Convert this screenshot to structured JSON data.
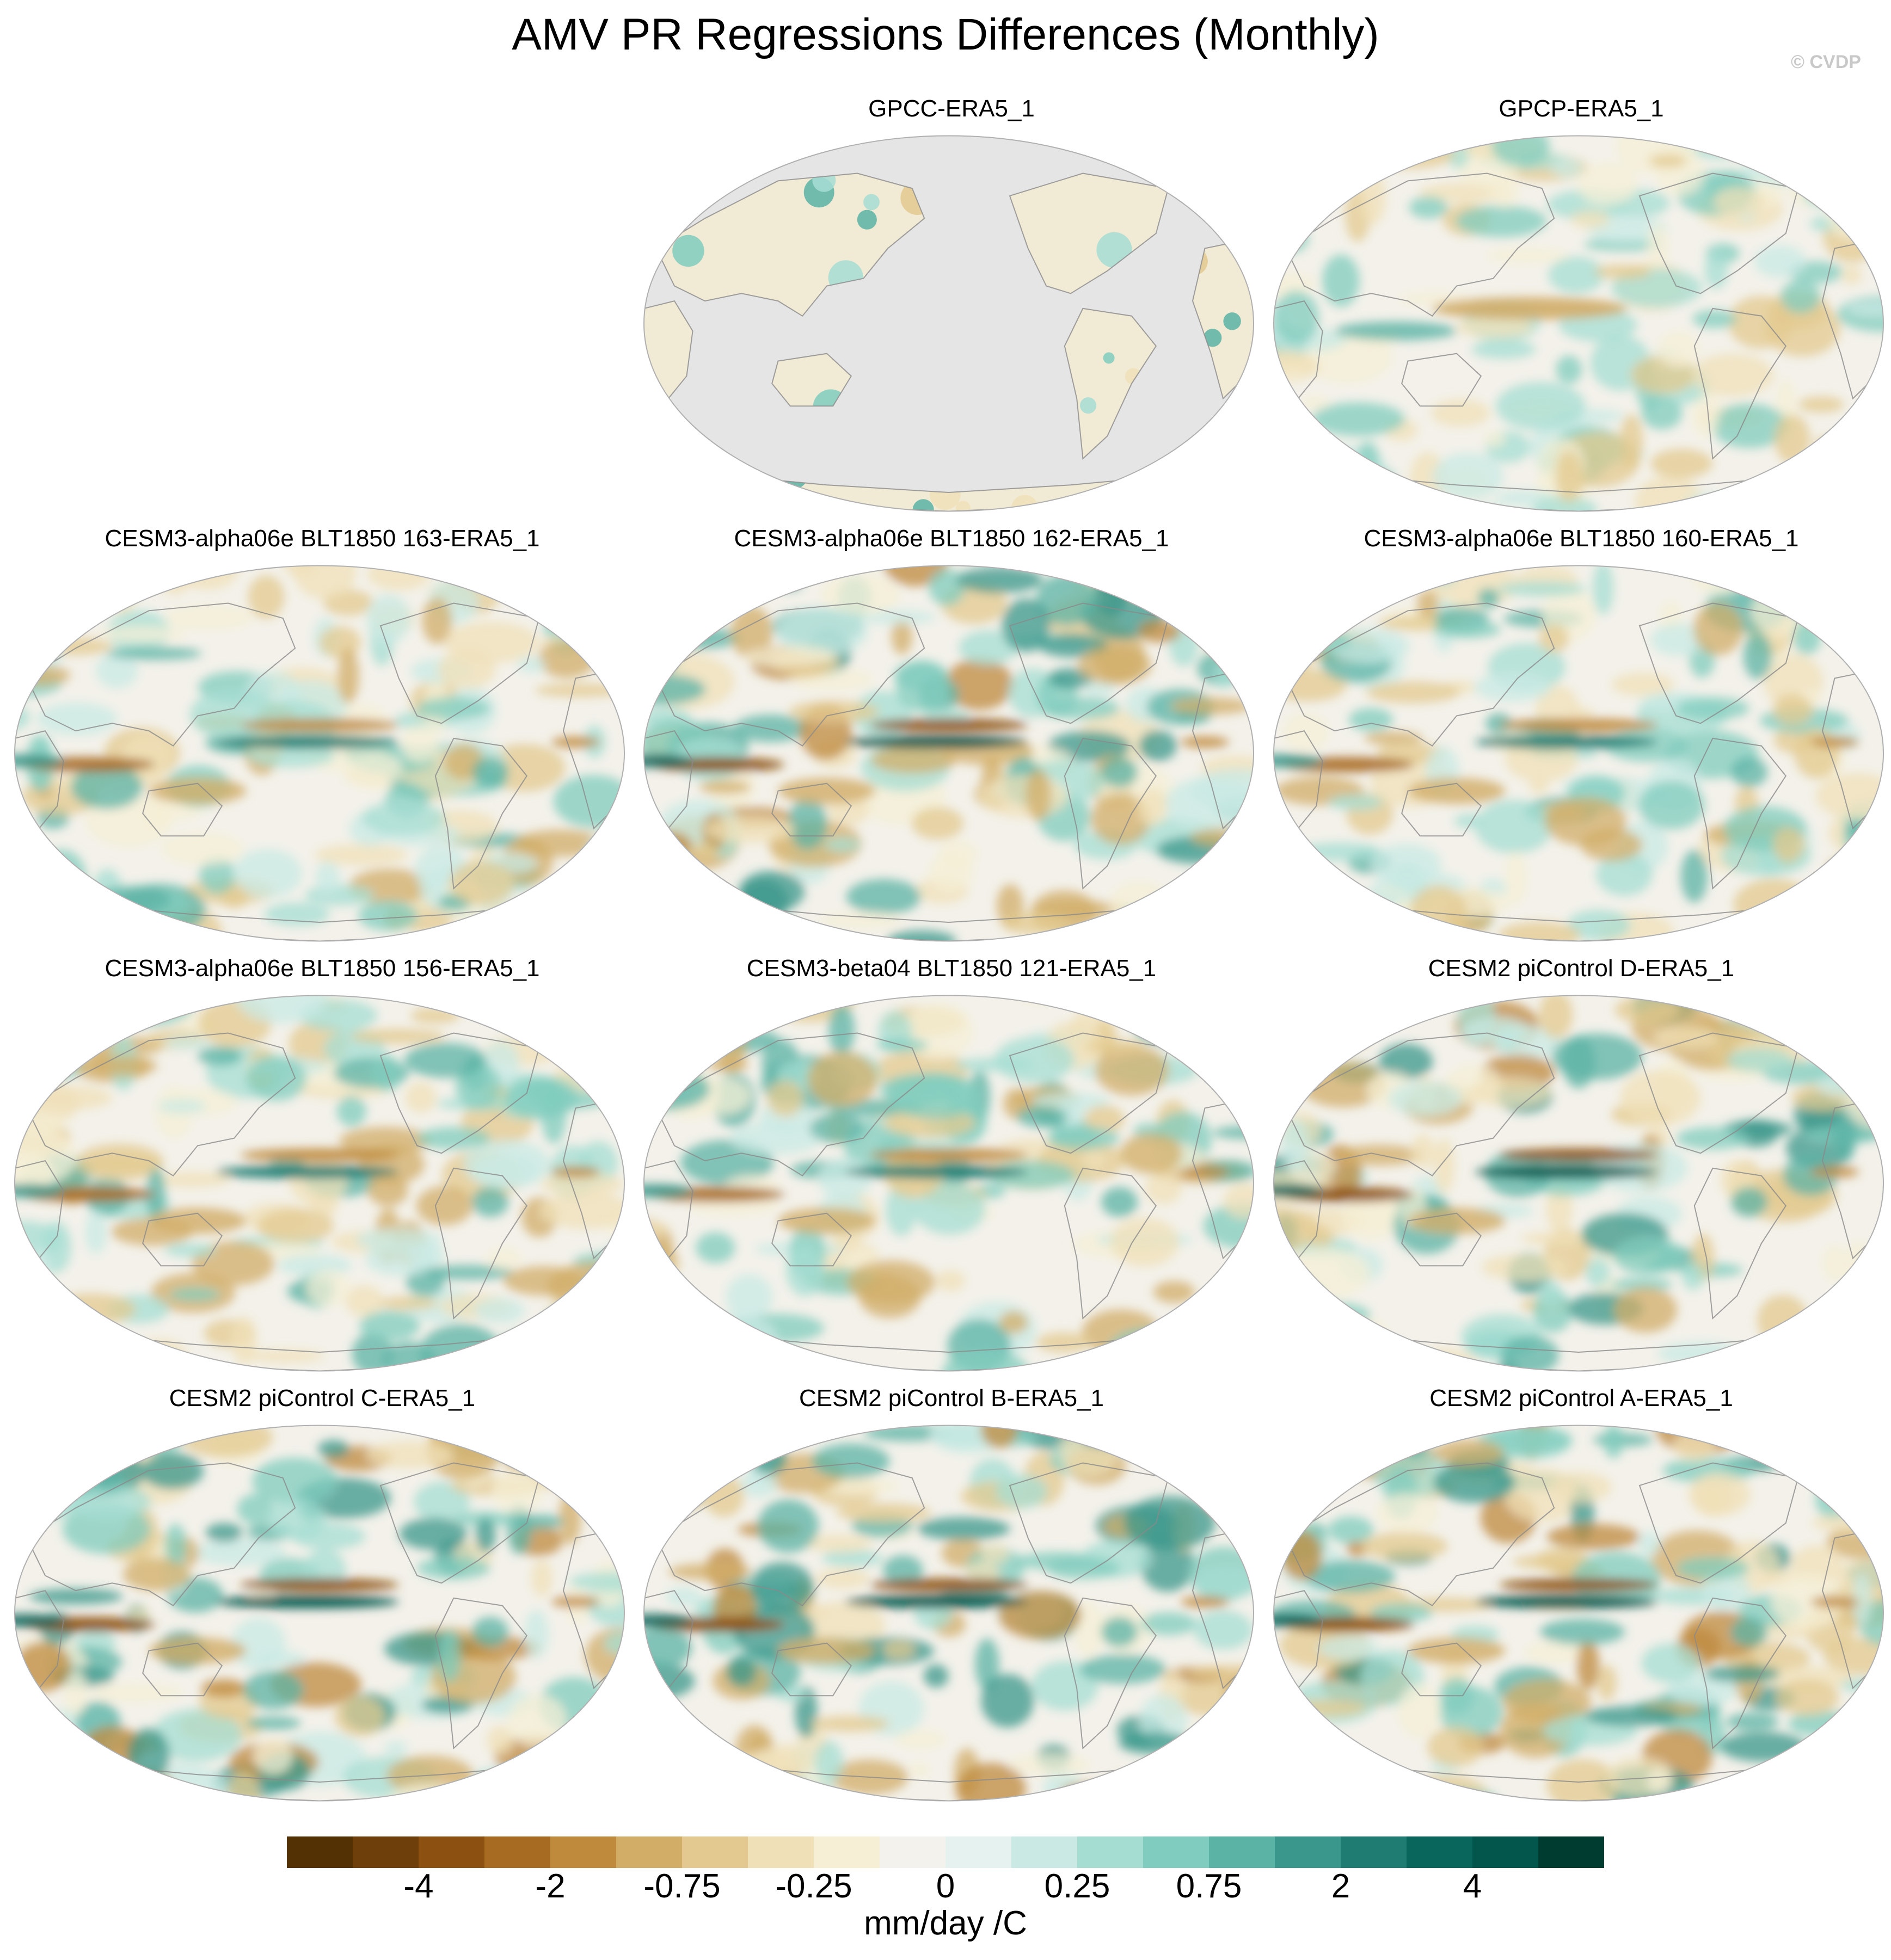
{
  "header": {
    "title": "AMV PR Regressions Differences (Monthly)",
    "credit": "© CVDP"
  },
  "panels": [
    {
      "title": "GPCC-ERA5_1",
      "land_only": true,
      "pattern": "gpcc"
    },
    {
      "title": "GPCP-ERA5_1",
      "land_only": false,
      "pattern": "weak"
    },
    {
      "title": "CESM3-alpha06e BLT1850 163-ERA5_1",
      "land_only": false,
      "pattern": "moderate"
    },
    {
      "title": "CESM3-alpha06e BLT1850 162-ERA5_1",
      "land_only": false,
      "pattern": "strong-itcz"
    },
    {
      "title": "CESM3-alpha06e BLT1850 160-ERA5_1",
      "land_only": false,
      "pattern": "moderate"
    },
    {
      "title": "CESM3-alpha06e BLT1850 156-ERA5_1",
      "land_only": false,
      "pattern": "moderate"
    },
    {
      "title": "CESM3-beta04 BLT1850 121-ERA5_1",
      "land_only": false,
      "pattern": "moderate"
    },
    {
      "title": "CESM2 piControl D-ERA5_1",
      "land_only": false,
      "pattern": "strong"
    },
    {
      "title": "CESM2 piControl C-ERA5_1",
      "land_only": false,
      "pattern": "strong"
    },
    {
      "title": "CESM2 piControl B-ERA5_1",
      "land_only": false,
      "pattern": "strong"
    },
    {
      "title": "CESM2 piControl A-ERA5_1",
      "land_only": false,
      "pattern": "strong"
    }
  ],
  "colorbar": {
    "colors": [
      "#543005",
      "#6f3f0b",
      "#8c5110",
      "#a86b22",
      "#bf8a3c",
      "#d2ad68",
      "#e3c98f",
      "#f0e0b8",
      "#f6efd5",
      "#f4f2ec",
      "#e6f2f0",
      "#cae9e4",
      "#a6ddd3",
      "#80ccbe",
      "#5bb3a6",
      "#3a978b",
      "#1e7c72",
      "#08665d",
      "#02564c",
      "#003c30"
    ],
    "labels": [
      "-4",
      "-2",
      "-0.75",
      "-0.25",
      "0",
      "0.25",
      "0.75",
      "2",
      "4"
    ],
    "label_boundaries": [
      2,
      4,
      6,
      8,
      10,
      12,
      14,
      16,
      18
    ],
    "units": "mm/day /C"
  }
}
